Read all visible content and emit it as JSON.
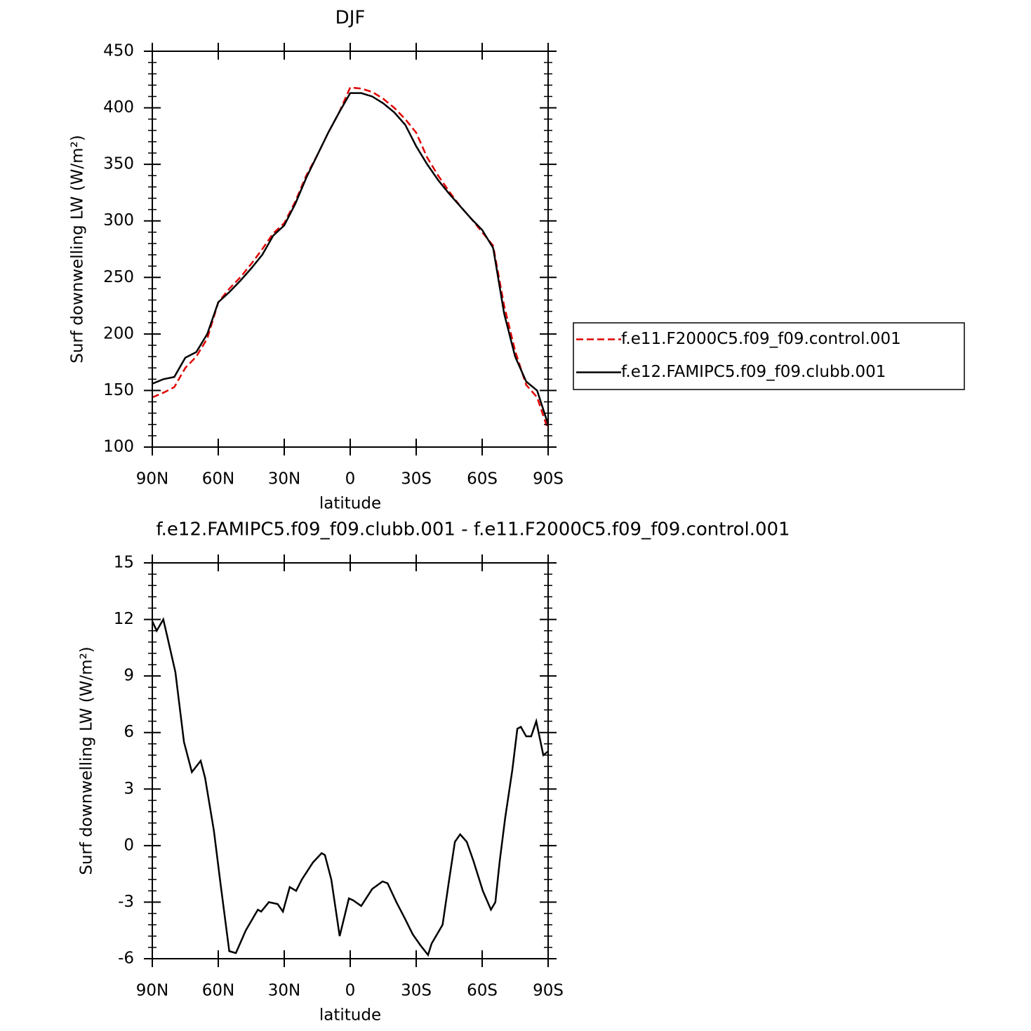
{
  "chart_data": [
    {
      "type": "line",
      "title": "DJF",
      "xlabel": "latitude",
      "ylabel": "Surf downwelling LW (W/m²)",
      "x": [
        90,
        85,
        80,
        75,
        70,
        65,
        60,
        55,
        50,
        45,
        40,
        35,
        30,
        25,
        20,
        15,
        10,
        5,
        0,
        -5,
        -10,
        -15,
        -20,
        -25,
        -30,
        -35,
        -40,
        -45,
        -50,
        -55,
        -60,
        -65,
        -70,
        -75,
        -80,
        -85,
        -90
      ],
      "series": [
        {
          "name": "f.e11.F2000C5.f09_f09.control.001",
          "color": "#e00000",
          "linestyle": "dashed",
          "values": [
            144,
            148,
            153,
            170,
            180,
            196,
            228,
            240,
            250,
            262,
            275,
            289,
            298,
            317,
            340,
            358,
            378,
            396,
            418,
            417,
            414,
            408,
            400,
            390,
            378,
            356,
            340,
            326,
            313,
            302,
            290,
            278,
            225,
            185,
            155,
            144,
            115
          ]
        },
        {
          "name": "f.e12.FAMIPC5.f09_f09.clubb.001",
          "color": "#000000",
          "linestyle": "solid",
          "values": [
            156,
            160,
            162,
            179,
            184,
            200,
            228,
            237,
            247,
            258,
            270,
            287,
            296,
            315,
            338,
            358,
            378,
            396,
            413,
            413,
            410,
            404,
            396,
            385,
            366,
            350,
            336,
            324,
            313,
            302,
            292,
            276,
            218,
            180,
            158,
            150,
            120
          ]
        }
      ],
      "xlim": [
        90,
        -90
      ],
      "xticks": [
        {
          "value": 90,
          "label": "90N"
        },
        {
          "value": 60,
          "label": "60N"
        },
        {
          "value": 30,
          "label": "30N"
        },
        0,
        {
          "value": -30,
          "label": "30S"
        },
        {
          "value": -60,
          "label": "60S"
        },
        {
          "value": -90,
          "label": "90S"
        }
      ],
      "ylim": [
        100,
        450
      ],
      "yticks": [
        100,
        150,
        200,
        250,
        300,
        350,
        400,
        450
      ],
      "legend": "right"
    },
    {
      "type": "line",
      "title": "f.e12.FAMIPC5.f09_f09.clubb.001 - f.e11.F2000C5.f09_f09.control.001",
      "xlabel": "latitude",
      "ylabel": "Surf downwelling LW (W/m²)",
      "x": [
        90,
        88,
        85,
        83,
        79.5,
        75.6,
        72,
        68,
        66,
        62,
        59,
        55,
        52,
        47.5,
        42,
        40.5,
        37,
        33,
        30.6,
        27.5,
        24.6,
        22,
        17,
        13,
        11.5,
        8.6,
        4.8,
        0.6,
        -1.3,
        -5,
        -10,
        -14.7,
        -17,
        -21,
        -25,
        -28.4,
        -32,
        -35.4,
        -37,
        -42,
        -45,
        -47.6,
        -50,
        -53,
        -56,
        -60.3,
        -64,
        -66,
        -68,
        -70.5,
        -73.7,
        -76,
        -77.6,
        -80,
        -82.3,
        -84.6,
        -87.8,
        -90
      ],
      "series": [
        {
          "color": "#000000",
          "linestyle": "solid",
          "values": [
            11.9,
            11.4,
            12.0,
            11.0,
            9.2,
            5.5,
            3.9,
            4.5,
            3.6,
            0.8,
            -2.0,
            -5.6,
            -5.7,
            -4.5,
            -3.4,
            -3.5,
            -3.0,
            -3.1,
            -3.5,
            -2.2,
            -2.4,
            -1.8,
            -0.9,
            -0.4,
            -0.5,
            -1.8,
            -4.8,
            -2.8,
            -2.9,
            -3.2,
            -2.3,
            -1.9,
            -2.0,
            -3.0,
            -3.9,
            -4.7,
            -5.3,
            -5.8,
            -5.2,
            -4.2,
            -1.8,
            0.2,
            0.6,
            0.2,
            -0.8,
            -2.4,
            -3.4,
            -3.0,
            -0.8,
            1.5,
            4.0,
            6.2,
            6.3,
            5.8,
            5.8,
            6.6,
            4.8,
            5.0
          ]
        }
      ],
      "xlim": [
        90,
        -90
      ],
      "xticks": [
        {
          "value": 90,
          "label": "90N"
        },
        {
          "value": 60,
          "label": "60N"
        },
        {
          "value": 30,
          "label": "30N"
        },
        0,
        {
          "value": -30,
          "label": "30S"
        },
        {
          "value": -60,
          "label": "60S"
        },
        {
          "value": -90,
          "label": "90S"
        }
      ],
      "ylim": [
        -6,
        15
      ],
      "yticks": [
        -6,
        -3,
        0,
        3,
        6,
        9,
        12,
        15
      ]
    }
  ]
}
